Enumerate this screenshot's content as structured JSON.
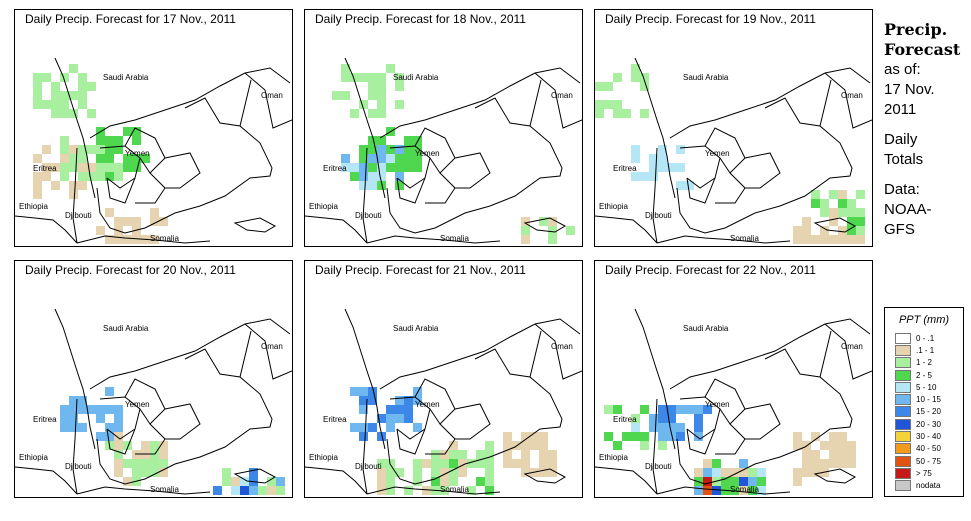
{
  "panels": [
    {
      "title": "Daily Precip. Forecast for  17 Nov., 2011"
    },
    {
      "title": "Daily Precip. Forecast for  18 Nov., 2011"
    },
    {
      "title": "Daily Precip. Forecast for  19 Nov., 2011"
    },
    {
      "title": "Daily Precip. Forecast for  20 Nov., 2011"
    },
    {
      "title": "Daily Precip. Forecast for  21 Nov., 2011"
    },
    {
      "title": "Daily Precip. Forecast for  22 Nov., 2011"
    }
  ],
  "map_labels": {
    "saudi": "Saudi Arabia",
    "oman": "Oman",
    "yemen": "Yemen",
    "eritrea": "Eritrea",
    "ethiopia": "Ethiopia",
    "djibouti": "Djibouti",
    "somalia": "Somalia"
  },
  "side": {
    "heading_line1": "Precip.",
    "heading_line2": "Forecast",
    "asof": "as of:",
    "date_line1": "17 Nov.",
    "date_line2": "2011",
    "daily1": "Daily",
    "daily2": "Totals",
    "data1": "Data:",
    "data2": "NOAA-",
    "data3": "GFS"
  },
  "legend": {
    "title": "PPT (mm)",
    "items": [
      {
        "label": "0 - .1",
        "color": "#ffffff"
      },
      {
        "label": ".1 - 1",
        "color": "#e6d3b0"
      },
      {
        "label": "1 - 2",
        "color": "#a8f0a0"
      },
      {
        "label": "2 - 5",
        "color": "#4fd84f"
      },
      {
        "label": "5 - 10",
        "color": "#b4e6f5"
      },
      {
        "label": "10 - 15",
        "color": "#6fb7ef"
      },
      {
        "label": "15 - 20",
        "color": "#3d87e8"
      },
      {
        "label": "20 - 30",
        "color": "#1f55d6"
      },
      {
        "label": "30 - 40",
        "color": "#f6d23a"
      },
      {
        "label": "40 - 50",
        "color": "#f29a1c"
      },
      {
        "label": "50 - 75",
        "color": "#e25212"
      },
      {
        "label": "> 75",
        "color": "#c41a1a"
      },
      {
        "label": "nodata",
        "color": "#c8c8c8"
      }
    ]
  }
}
